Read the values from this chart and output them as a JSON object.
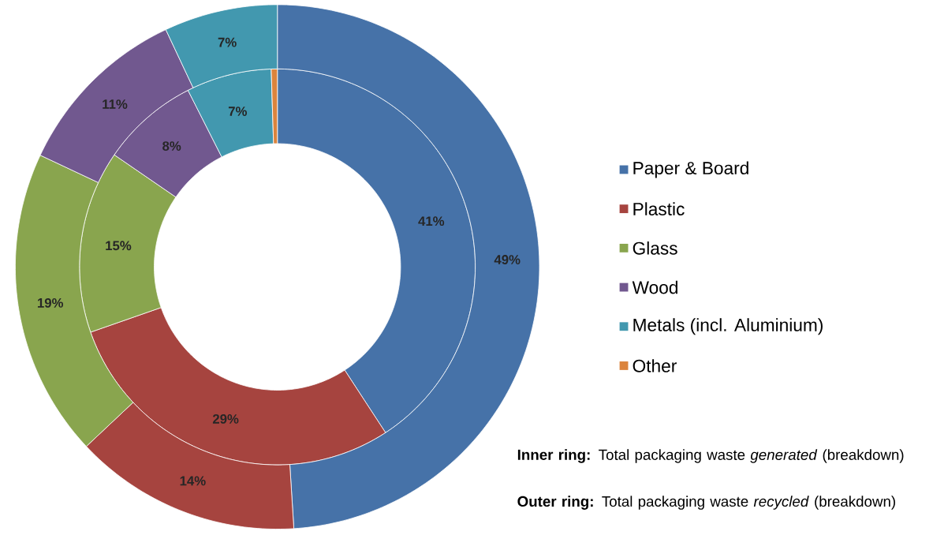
{
  "chart_data": {
    "type": "donut",
    "categories": [
      "Paper & Board",
      "Plastic",
      "Glass",
      "Wood",
      "Metals (incl. Aluminium)",
      "Other"
    ],
    "colors": [
      "#4672a8",
      "#a6443f",
      "#89a54e",
      "#71588f",
      "#4298af",
      "#db843d"
    ],
    "series": [
      {
        "values": [
          41,
          29,
          15,
          8,
          7,
          0.5
        ],
        "value_labels": [
          "41%",
          "29%",
          "15%",
          "8%",
          "7%",
          null
        ]
      },
      {
        "values": [
          49,
          14,
          19,
          11,
          7,
          null
        ],
        "value_labels": [
          "49%",
          "14%",
          "19%",
          "11%",
          "7%",
          null
        ]
      }
    ],
    "legend": "right",
    "annotations": [
      "**Inner ring:** Total packaging waste *generated* (breakdown)",
      "**Outer ring:** Total packaging waste *recycled* (breakdown)"
    ]
  }
}
